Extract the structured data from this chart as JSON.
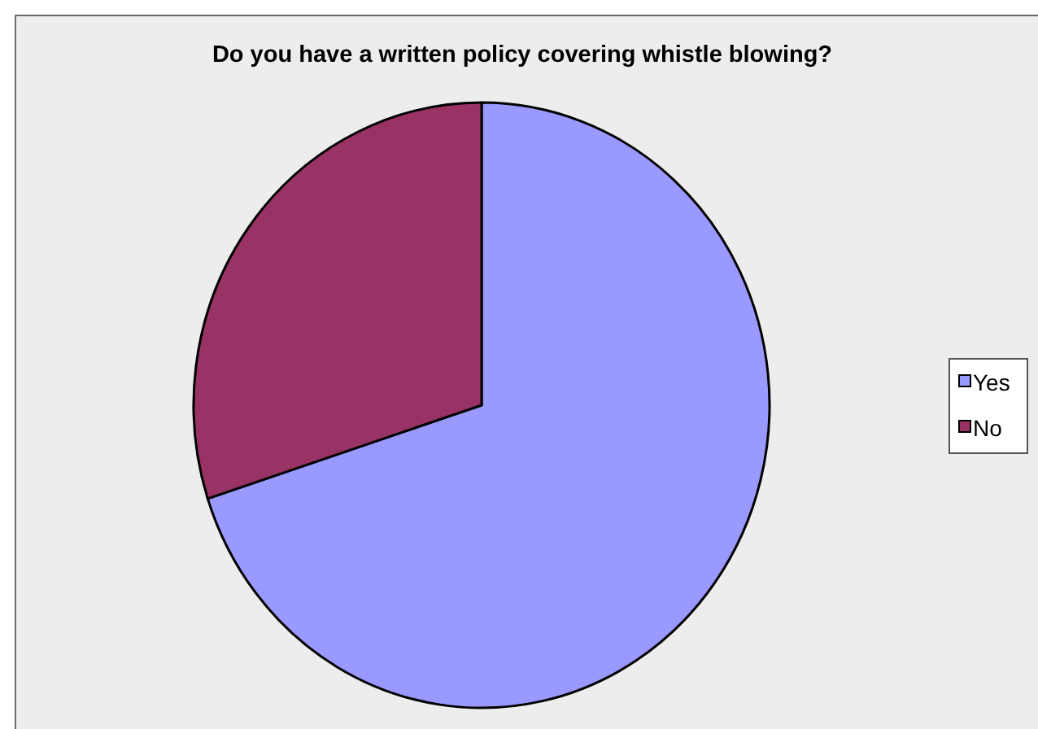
{
  "chart_data": {
    "type": "pie",
    "title": "Do you have a written policy covering whistle blowing?",
    "categories": [
      "Yes",
      "No"
    ],
    "values": [
      70,
      30
    ],
    "colors": [
      "#9999ff",
      "#993366"
    ],
    "legend": "right"
  }
}
